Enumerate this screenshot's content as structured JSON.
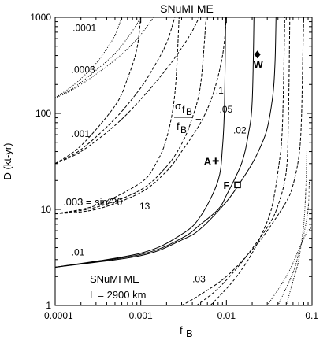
{
  "chart_data": {
    "type": "line",
    "title": "SNuMI ME",
    "xlabel": "f",
    "xlabel_sub": "B",
    "ylabel": "D (kt-yr)",
    "xscale": "log",
    "yscale": "log",
    "xlim": [
      0.0001,
      0.1
    ],
    "ylim": [
      1,
      1000
    ],
    "x_ticks": [
      {
        "value": 0.0001,
        "label": "0.0001"
      },
      {
        "value": 0.001,
        "label": "0.001"
      },
      {
        "value": 0.01,
        "label": "0.01"
      },
      {
        "value": 0.1,
        "label": "0.1"
      }
    ],
    "y_ticks": [
      {
        "value": 1,
        "label": "1"
      },
      {
        "value": 10,
        "label": "10"
      },
      {
        "value": 100,
        "label": "100"
      },
      {
        "value": 1000,
        "label": "1000"
      }
    ],
    "grid": false,
    "inset_label": {
      "line1": "SNuMI  ME",
      "line2": "L = 2900 km"
    },
    "sigma_label": {
      "numerator": "σ",
      "num_sub": "f",
      "num_subsub": "B",
      "denominator": "f",
      "den_sub": "B",
      "equals": "="
    },
    "sin2_label": ".003 = sin²2θ",
    "sin2_sub": "13",
    "series_labels": [
      {
        "text": ".0001",
        "x": 0.00016,
        "y": 720
      },
      {
        "text": ".0003",
        "x": 0.000155,
        "y": 265
      },
      {
        "text": ".001",
        "x": 0.000155,
        "y": 57
      },
      {
        "text": ".01",
        "x": 0.000155,
        "y": 3.3
      },
      {
        "text": ".03",
        "x": 0.004,
        "y": 1.75
      },
      {
        "text": ".1",
        "x": 0.0075,
        "y": 160
      },
      {
        "text": ".05",
        "x": 0.0083,
        "y": 102
      },
      {
        "text": ".02",
        "x": 0.012,
        "y": 62
      }
    ],
    "markers": [
      {
        "label": "W",
        "x": 0.023,
        "y": 410,
        "symbol": "diamond"
      },
      {
        "label": "A",
        "x": 0.0075,
        "y": 32,
        "symbol": "plus"
      },
      {
        "label": "F",
        "x": 0.0135,
        "y": 18,
        "symbol": "square"
      }
    ],
    "series": [
      {
        "sin2": 0.0001,
        "sigma": 0.1,
        "style": "dotted",
        "points": [
          [
            0.0001,
            1000
          ],
          [
            0.00012,
            1000
          ]
        ]
      },
      {
        "sin2": 0.0001,
        "sigma": 0.05,
        "style": "dotted",
        "points": [
          [
            0.0001,
            1000
          ],
          [
            0.000105,
            1000
          ]
        ]
      },
      {
        "sin2": 0.0003,
        "sigma": 0.1,
        "style": "dotted",
        "points": [
          [
            0.0001,
            145
          ],
          [
            0.00013,
            160
          ],
          [
            0.0002,
            200
          ],
          [
            0.0003,
            255
          ],
          [
            0.0005,
            360
          ],
          [
            0.0007,
            470
          ],
          [
            0.001,
            660
          ],
          [
            0.0013,
            900
          ],
          [
            0.0014,
            1000
          ]
        ]
      },
      {
        "sin2": 0.0003,
        "sigma": 0.05,
        "style": "dotted",
        "points": [
          [
            0.0001,
            145
          ],
          [
            0.00015,
            175
          ],
          [
            0.0002,
            210
          ],
          [
            0.0003,
            280
          ],
          [
            0.0005,
            420
          ],
          [
            0.0007,
            610
          ],
          [
            0.0009,
            850
          ],
          [
            0.001,
            1000
          ]
        ]
      },
      {
        "sin2": 0.0003,
        "sigma": 0.02,
        "style": "dotted",
        "points": [
          [
            0.0001,
            145
          ],
          [
            0.00015,
            185
          ],
          [
            0.0002,
            230
          ],
          [
            0.0003,
            330
          ],
          [
            0.0004,
            470
          ],
          [
            0.0005,
            650
          ],
          [
            0.0006,
            1000
          ]
        ]
      },
      {
        "sin2": 0.001,
        "sigma": 0.1,
        "style": "dashed",
        "points": [
          [
            0.0001,
            30
          ],
          [
            0.0002,
            40
          ],
          [
            0.0005,
            75
          ],
          [
            0.001,
            140
          ],
          [
            0.002,
            290
          ],
          [
            0.003,
            480
          ],
          [
            0.004,
            720
          ],
          [
            0.0048,
            1000
          ]
        ]
      },
      {
        "sin2": 0.001,
        "sigma": 0.05,
        "style": "dashed",
        "points": [
          [
            0.0001,
            30
          ],
          [
            0.0002,
            42
          ],
          [
            0.0005,
            88
          ],
          [
            0.001,
            185
          ],
          [
            0.0015,
            330
          ],
          [
            0.002,
            540
          ],
          [
            0.0025,
            1000
          ]
        ]
      },
      {
        "sin2": 0.001,
        "sigma": 0.02,
        "style": "dashed",
        "points": [
          [
            0.0001,
            30
          ],
          [
            0.0002,
            46
          ],
          [
            0.0005,
            120
          ],
          [
            0.0007,
            230
          ],
          [
            0.0009,
            470
          ],
          [
            0.001,
            1000
          ]
        ]
      },
      {
        "sin2": 0.003,
        "sigma": 0.1,
        "style": "dashed",
        "points": [
          [
            0.0001,
            9
          ],
          [
            0.0003,
            10
          ],
          [
            0.001,
            15
          ],
          [
            0.002,
            25
          ],
          [
            0.003,
            40
          ],
          [
            0.005,
            80
          ],
          [
            0.007,
            160
          ],
          [
            0.009,
            400
          ],
          [
            0.01,
            1000
          ]
        ]
      },
      {
        "sin2": 0.003,
        "sigma": 0.05,
        "style": "dashed",
        "points": [
          [
            0.0001,
            9
          ],
          [
            0.0003,
            10.5
          ],
          [
            0.001,
            16
          ],
          [
            0.002,
            28
          ],
          [
            0.003,
            48
          ],
          [
            0.004,
            90
          ],
          [
            0.005,
            200
          ],
          [
            0.0058,
            1000
          ]
        ]
      },
      {
        "sin2": 0.003,
        "sigma": 0.02,
        "style": "dashed",
        "points": [
          [
            0.0001,
            9
          ],
          [
            0.0003,
            11
          ],
          [
            0.001,
            19
          ],
          [
            0.0015,
            30
          ],
          [
            0.002,
            55
          ],
          [
            0.0025,
            160
          ],
          [
            0.0028,
            1000
          ]
        ]
      },
      {
        "sin2": 0.01,
        "sigma": 0.1,
        "style": "solid",
        "points": [
          [
            0.0001,
            2.5
          ],
          [
            0.001,
            3.3
          ],
          [
            0.003,
            4.8
          ],
          [
            0.005,
            6.3
          ],
          [
            0.01,
            12
          ],
          [
            0.015,
            20
          ],
          [
            0.02,
            30
          ],
          [
            0.025,
            45
          ],
          [
            0.03,
            70
          ],
          [
            0.035,
            160
          ],
          [
            0.037,
            350
          ],
          [
            0.038,
            1000
          ]
        ]
      },
      {
        "sin2": 0.01,
        "sigma": 0.05,
        "style": "solid",
        "points": [
          [
            0.0001,
            2.5
          ],
          [
            0.001,
            3.4
          ],
          [
            0.003,
            5.0
          ],
          [
            0.005,
            7.0
          ],
          [
            0.008,
            10
          ],
          [
            0.01,
            14
          ],
          [
            0.015,
            30
          ],
          [
            0.018,
            60
          ],
          [
            0.02,
            130
          ],
          [
            0.021,
            1000
          ]
        ]
      },
      {
        "sin2": 0.01,
        "sigma": 0.02,
        "style": "solid",
        "points": [
          [
            0.0001,
            2.5
          ],
          [
            0.001,
            3.5
          ],
          [
            0.003,
            5.5
          ],
          [
            0.005,
            8.5
          ],
          [
            0.008,
            20
          ],
          [
            0.009,
            45
          ],
          [
            0.0095,
            120
          ],
          [
            0.0098,
            1000
          ]
        ]
      },
      {
        "sin2": 0.03,
        "sigma": 0.1,
        "style": "dashed",
        "points": [
          [
            0.003,
            1
          ],
          [
            0.005,
            1.3
          ],
          [
            0.01,
            2.0
          ],
          [
            0.02,
            3.8
          ],
          [
            0.03,
            6
          ],
          [
            0.05,
            12
          ],
          [
            0.06,
            18
          ],
          [
            0.07,
            35
          ],
          [
            0.075,
            80
          ],
          [
            0.078,
            400
          ],
          [
            0.08,
            1000
          ]
        ]
      },
      {
        "sin2": 0.03,
        "sigma": 0.05,
        "style": "dashed",
        "points": [
          [
            0.0045,
            1
          ],
          [
            0.008,
            1.5
          ],
          [
            0.015,
            2.8
          ],
          [
            0.03,
            6.5
          ],
          [
            0.04,
            11
          ],
          [
            0.05,
            25
          ],
          [
            0.053,
            90
          ],
          [
            0.055,
            1000
          ]
        ]
      },
      {
        "sin2": 0.03,
        "sigma": 0.02,
        "style": "dashed",
        "points": [
          [
            0.0065,
            1
          ],
          [
            0.012,
            1.8
          ],
          [
            0.02,
            3.5
          ],
          [
            0.03,
            7.5
          ],
          [
            0.035,
            12
          ],
          [
            0.04,
            25
          ],
          [
            0.045,
            70
          ],
          [
            0.048,
            1000
          ]
        ]
      },
      {
        "sin2": 0.1,
        "sigma": 0.1,
        "style": "dotted",
        "points": [
          [
            0.03,
            1
          ],
          [
            0.05,
            2
          ],
          [
            0.07,
            3.8
          ],
          [
            0.08,
            5
          ],
          [
            0.09,
            6
          ],
          [
            0.1,
            6.5
          ]
        ]
      },
      {
        "sin2": 0.1,
        "sigma": 0.05,
        "style": "dotted",
        "points": [
          [
            0.04,
            1
          ],
          [
            0.06,
            2.2
          ],
          [
            0.07,
            3.5
          ],
          [
            0.08,
            5.5
          ],
          [
            0.09,
            10
          ],
          [
            0.093,
            20
          ]
        ]
      },
      {
        "sin2": 0.1,
        "sigma": 0.02,
        "style": "dotted",
        "points": [
          [
            0.05,
            1
          ],
          [
            0.06,
            1.8
          ],
          [
            0.07,
            3
          ],
          [
            0.08,
            7
          ],
          [
            0.085,
            18
          ],
          [
            0.087,
            40
          ]
        ]
      }
    ]
  }
}
